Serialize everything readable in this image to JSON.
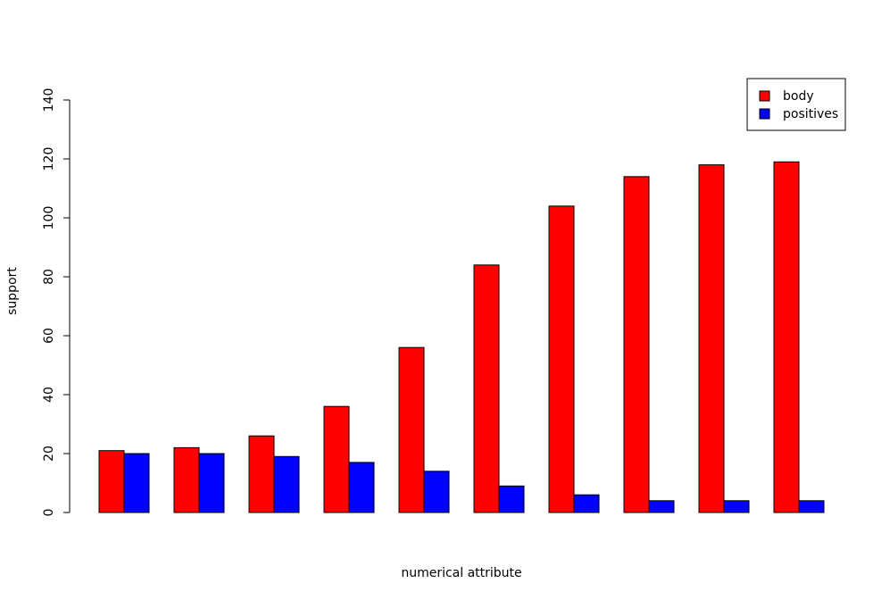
{
  "chart_data": {
    "type": "bar",
    "title": "",
    "xlabel": "numerical attribute",
    "ylabel": "support",
    "ylim": [
      0,
      140
    ],
    "yticks": [
      0,
      20,
      40,
      60,
      80,
      100,
      120,
      140
    ],
    "grid": false,
    "legend_position": "top-right",
    "categories": [
      "",
      "",
      "",
      "",
      "",
      "",
      "",
      "",
      "",
      ""
    ],
    "series": [
      {
        "name": "body",
        "color": "#ff0000",
        "values": [
          21,
          22,
          26,
          36,
          56,
          84,
          104,
          114,
          118,
          119
        ]
      },
      {
        "name": "positives",
        "color": "#0000ff",
        "values": [
          20,
          20,
          19,
          17,
          14,
          9,
          6,
          4,
          4,
          4
        ]
      }
    ]
  }
}
